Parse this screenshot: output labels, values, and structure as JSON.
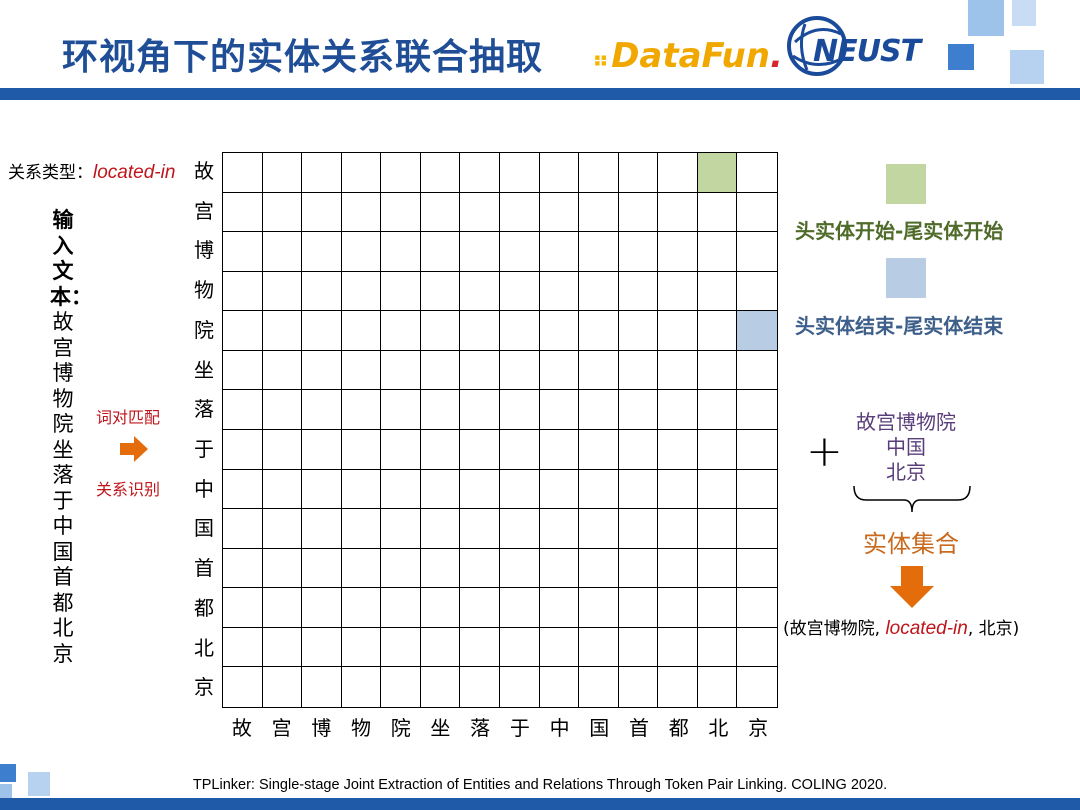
{
  "header": {
    "title": "环视角下的实体关系联合抽取",
    "logo_datafun": "DataFun",
    "logo_datafun_dot": ".",
    "logo_nelist": "NEUST"
  },
  "relation": {
    "label": "关系类型：",
    "value": "located-in"
  },
  "input": {
    "label": "输入文本：",
    "text": "故宫博物院坐落于中国首都北京"
  },
  "process": {
    "step1": "词对匹配",
    "step2": "关系识别"
  },
  "matrix": {
    "tokens": [
      "故",
      "宫",
      "博",
      "物",
      "院",
      "坐",
      "落",
      "于",
      "中",
      "国",
      "首",
      "都",
      "北",
      "京"
    ],
    "marked_cells": [
      {
        "row": 0,
        "col": 12,
        "type": "head-start-tail-start"
      },
      {
        "row": 4,
        "col": 13,
        "type": "head-end-tail-end"
      }
    ]
  },
  "legend": {
    "start": {
      "label": "头实体开始-尾实体开始",
      "color": "#c1d6a0",
      "text_color": "#4f6b2a"
    },
    "end": {
      "label": "头实体结束-尾实体结束",
      "color": "#b8cce4",
      "text_color": "#3e5f8a"
    }
  },
  "entities": {
    "plus": "+",
    "items": [
      "故宫博物院",
      "中国",
      "北京"
    ],
    "set_label": "实体集合"
  },
  "result": {
    "open": "(故宫博物院, ",
    "relation": "located-in",
    "close": ", 北京)"
  },
  "footer": {
    "citation": "TPLinker: Single-stage Joint Extraction of Entities and Relations Through Token Pair Linking. COLING 2020."
  },
  "colors": {
    "title": "#1f4e96",
    "bar": "#1f5aa8",
    "accent_red": "#c0141b",
    "arrow_orange": "#e46c0a"
  }
}
